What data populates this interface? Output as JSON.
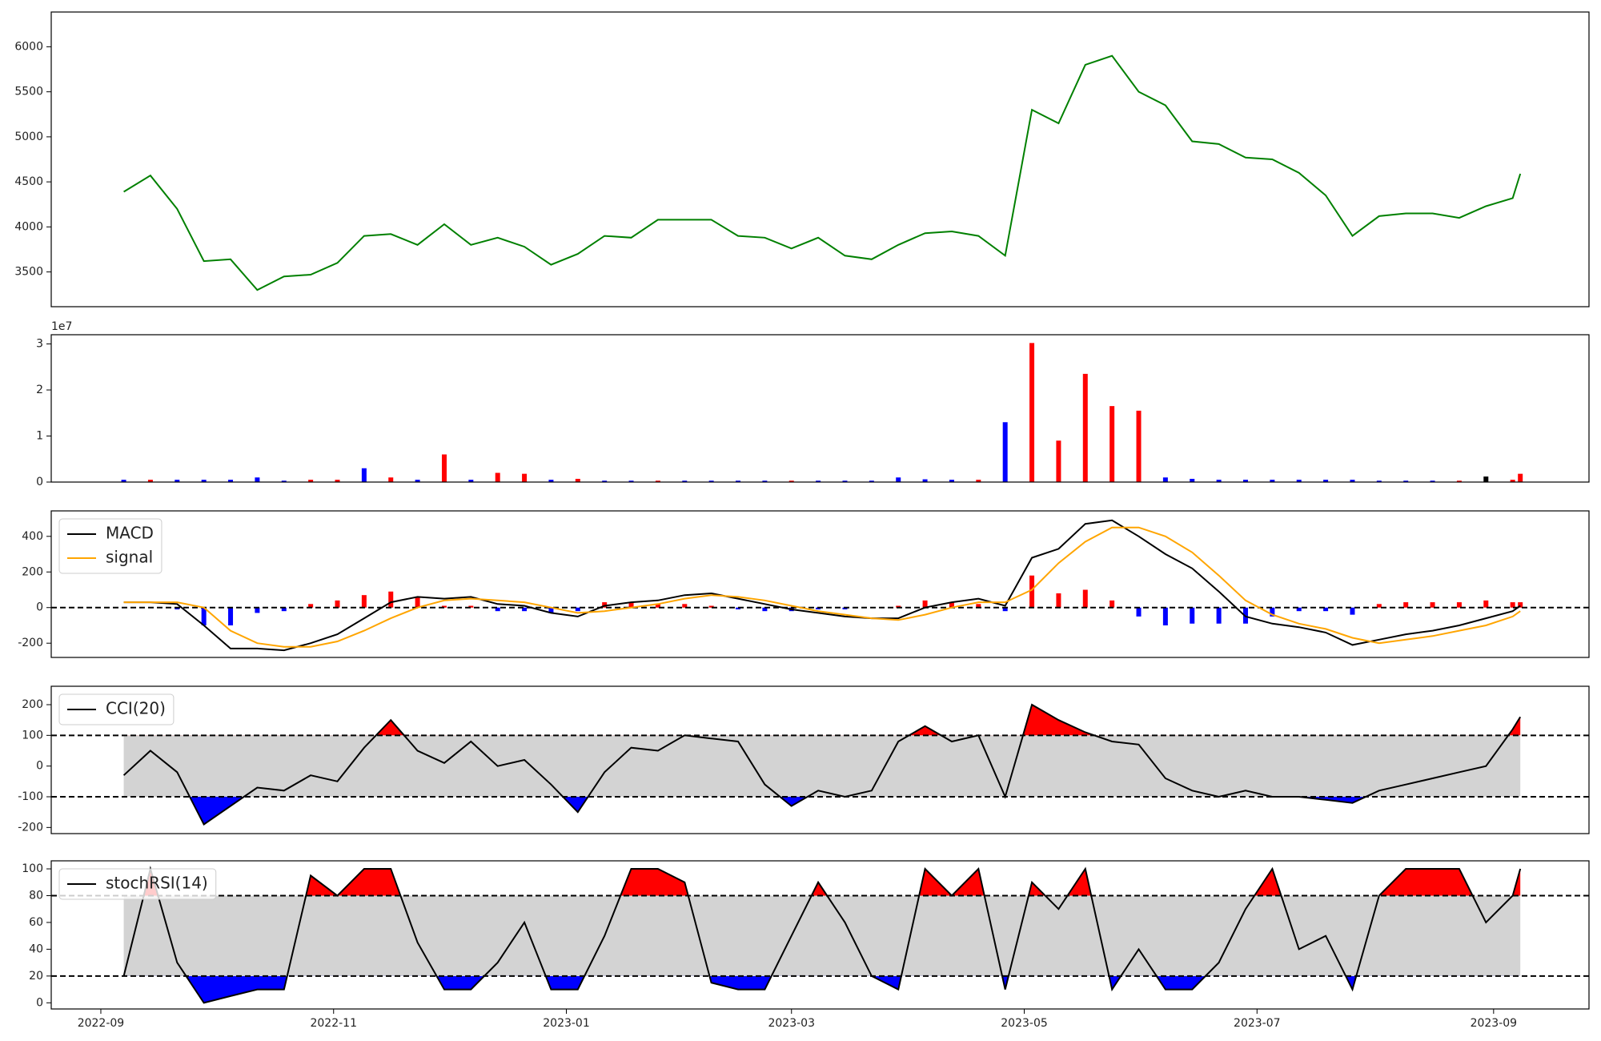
{
  "chart_data": [
    {
      "type": "line",
      "series": [
        {
          "color": "green",
          "values": [
            4390,
            4570,
            4200,
            3620,
            3640,
            3300,
            3450,
            3470,
            3600,
            3900,
            3920,
            3800,
            4030,
            3800,
            3880,
            3780,
            3580,
            3700,
            3900,
            3880,
            4080,
            4080,
            4080,
            3900,
            3880,
            3760,
            3880,
            3680,
            3640,
            3800,
            3930,
            3950,
            3900,
            3680,
            5300,
            5150,
            5800,
            5900,
            5500,
            5350,
            4950,
            4920,
            4770,
            4750,
            4600,
            4350,
            3900,
            4120,
            4150,
            4150,
            4100,
            4230,
            4320,
            4590
          ]
        }
      ],
      "ylim": [
        3114,
        6386
      ],
      "yticks": [
        3500,
        4000,
        4500,
        5000,
        5500,
        6000
      ]
    },
    {
      "type": "bar",
      "offset_label": "1e7",
      "values": [
        0.05,
        0.05,
        0.05,
        0.05,
        0.05,
        0.1,
        0.03,
        0.05,
        0.05,
        0.3,
        0.1,
        0.05,
        0.6,
        0.05,
        0.2,
        0.18,
        0.05,
        0.07,
        0.03,
        0.03,
        0.03,
        0.03,
        0.03,
        0.03,
        0.03,
        0.03,
        0.03,
        0.03,
        0.03,
        0.1,
        0.06,
        0.05,
        0.05,
        1.3,
        3.02,
        0.9,
        2.35,
        1.65,
        1.55,
        0.1,
        0.07,
        0.05,
        0.05,
        0.05,
        0.05,
        0.05,
        0.05,
        0.03,
        0.03,
        0.03,
        0.03,
        0.12,
        0.05,
        0.18
      ],
      "colors": [
        "blue",
        "red",
        "blue",
        "blue",
        "blue",
        "blue",
        "blue",
        "red",
        "red",
        "blue",
        "red",
        "blue",
        "red",
        "blue",
        "red",
        "red",
        "blue",
        "red",
        "blue",
        "blue",
        "red",
        "blue",
        "blue",
        "blue",
        "blue",
        "red",
        "blue",
        "blue",
        "blue",
        "blue",
        "blue",
        "blue",
        "red",
        "blue",
        "red",
        "red",
        "red",
        "red",
        "red",
        "blue",
        "blue",
        "blue",
        "blue",
        "blue",
        "blue",
        "blue",
        "blue",
        "blue",
        "blue",
        "blue",
        "red",
        "black",
        "red",
        "red"
      ],
      "ylim": [
        0,
        3.2
      ],
      "yticks": [
        0,
        1,
        2,
        3
      ]
    },
    {
      "type": "macd",
      "series": [
        {
          "name": "MACD",
          "color": "black",
          "values": [
            30,
            30,
            20,
            -100,
            -230,
            -230,
            -240,
            -200,
            -150,
            -60,
            30,
            60,
            50,
            60,
            20,
            10,
            -30,
            -50,
            10,
            30,
            40,
            70,
            80,
            50,
            20,
            -10,
            -30,
            -50,
            -60,
            -60,
            0,
            30,
            50,
            10,
            280,
            330,
            470,
            490,
            400,
            300,
            220,
            90,
            -50,
            -90,
            -110,
            -140,
            -210,
            -180,
            -150,
            -130,
            -100,
            -60,
            -20,
            10
          ]
        },
        {
          "name": "signal",
          "color": "orange",
          "values": [
            30,
            30,
            30,
            0,
            -130,
            -200,
            -220,
            -220,
            -190,
            -130,
            -60,
            0,
            40,
            50,
            40,
            30,
            0,
            -30,
            -20,
            0,
            20,
            50,
            70,
            60,
            40,
            10,
            -20,
            -40,
            -60,
            -70,
            -40,
            0,
            30,
            30,
            100,
            250,
            370,
            450,
            450,
            400,
            310,
            180,
            40,
            -40,
            -90,
            -120,
            -170,
            -200,
            -180,
            -160,
            -130,
            -100,
            -50,
            -20
          ]
        }
      ],
      "histogram": {
        "pos_color": "red",
        "neg_color": "blue",
        "values": [
          0,
          0,
          -10,
          -100,
          -100,
          -30,
          -20,
          20,
          40,
          70,
          90,
          60,
          10,
          10,
          -20,
          -20,
          -30,
          -20,
          30,
          30,
          20,
          20,
          10,
          -10,
          -20,
          -20,
          -10,
          -10,
          0,
          10,
          40,
          30,
          20,
          -20,
          180,
          80,
          100,
          40,
          -50,
          -100,
          -90,
          -90,
          -90,
          -50,
          -20,
          -20,
          -40,
          20,
          30,
          30,
          30,
          40,
          30,
          30
        ]
      },
      "zero_line": 0,
      "ylim": [
        -280,
        543
      ],
      "yticks": [
        -200,
        0,
        200,
        400
      ],
      "legend": "upper left"
    },
    {
      "type": "band",
      "series": [
        {
          "name": "CCI(20)",
          "color": "black",
          "values": [
            -30,
            50,
            -20,
            -190,
            -130,
            -70,
            -80,
            -30,
            -50,
            60,
            150,
            50,
            10,
            80,
            0,
            20,
            -60,
            -150,
            -20,
            60,
            50,
            100,
            90,
            80,
            -60,
            -130,
            -80,
            -100,
            -80,
            80,
            130,
            80,
            100,
            -100,
            200,
            150,
            110,
            80,
            70,
            -40,
            -80,
            -100,
            -80,
            -100,
            -100,
            -110,
            -120,
            -80,
            -60,
            -40,
            -20,
            0,
            120,
            160
          ]
        }
      ],
      "thresholds": [
        -100,
        100
      ],
      "band_color": "lightgray",
      "upper_color": "red",
      "lower_color": "blue",
      "ylim": [
        -220,
        260
      ],
      "yticks": [
        -200,
        -100,
        0,
        100,
        200
      ],
      "legend": "upper left"
    },
    {
      "type": "band",
      "series": [
        {
          "name": "stochRSI(14)",
          "color": "black",
          "values": [
            20,
            100,
            30,
            0,
            5,
            10,
            10,
            95,
            80,
            100,
            100,
            45,
            10,
            10,
            30,
            60,
            10,
            10,
            50,
            100,
            100,
            90,
            15,
            10,
            10,
            50,
            90,
            60,
            20,
            10,
            100,
            80,
            100,
            10,
            90,
            70,
            100,
            10,
            40,
            10,
            10,
            30,
            70,
            100,
            40,
            50,
            10,
            80,
            100,
            100,
            100,
            60,
            80,
            100
          ]
        }
      ],
      "thresholds": [
        20,
        80
      ],
      "band_color": "lightgray",
      "upper_color": "red",
      "lower_color": "blue",
      "ylim": [
        -4.6,
        106
      ],
      "yticks": [
        0,
        20,
        40,
        60,
        80,
        100
      ],
      "legend": "upper left",
      "x": [
        "2022-09-07",
        "2022-09-14",
        "2022-09-21",
        "2022-09-28",
        "2022-10-05",
        "2022-10-12",
        "2022-10-19",
        "2022-10-26",
        "2022-11-02",
        "2022-11-09",
        "2022-11-16",
        "2022-11-23",
        "2022-11-30",
        "2022-12-07",
        "2022-12-14",
        "2022-12-21",
        "2022-12-28",
        "2023-01-04",
        "2023-01-11",
        "2023-01-18",
        "2023-01-25",
        "2023-02-01",
        "2023-02-08",
        "2023-02-15",
        "2023-02-22",
        "2023-03-01",
        "2023-03-08",
        "2023-03-15",
        "2023-03-22",
        "2023-03-29",
        "2023-04-05",
        "2023-04-12",
        "2023-04-19",
        "2023-04-26",
        "2023-05-03",
        "2023-05-10",
        "2023-05-17",
        "2023-05-24",
        "2023-05-31",
        "2023-06-07",
        "2023-06-14",
        "2023-06-21",
        "2023-06-28",
        "2023-07-05",
        "2023-07-12",
        "2023-07-19",
        "2023-07-26",
        "2023-08-02",
        "2023-08-09",
        "2023-08-16",
        "2023-08-23",
        "2023-08-30",
        "2023-09-06",
        "2023-09-08"
      ],
      "xlim": [
        "2022-08-19",
        "2023-09-26"
      ],
      "xticks": [
        {
          "value": "2022-09-01",
          "label": "2022-09"
        },
        {
          "value": "2022-11-01",
          "label": "2022-11"
        },
        {
          "value": "2023-01-01",
          "label": "2023-01"
        },
        {
          "value": "2023-03-01",
          "label": "2023-03"
        },
        {
          "value": "2023-05-01",
          "label": "2023-05"
        },
        {
          "value": "2023-07-01",
          "label": "2023-07"
        },
        {
          "value": "2023-09-01",
          "label": "2023-09"
        }
      ]
    }
  ]
}
